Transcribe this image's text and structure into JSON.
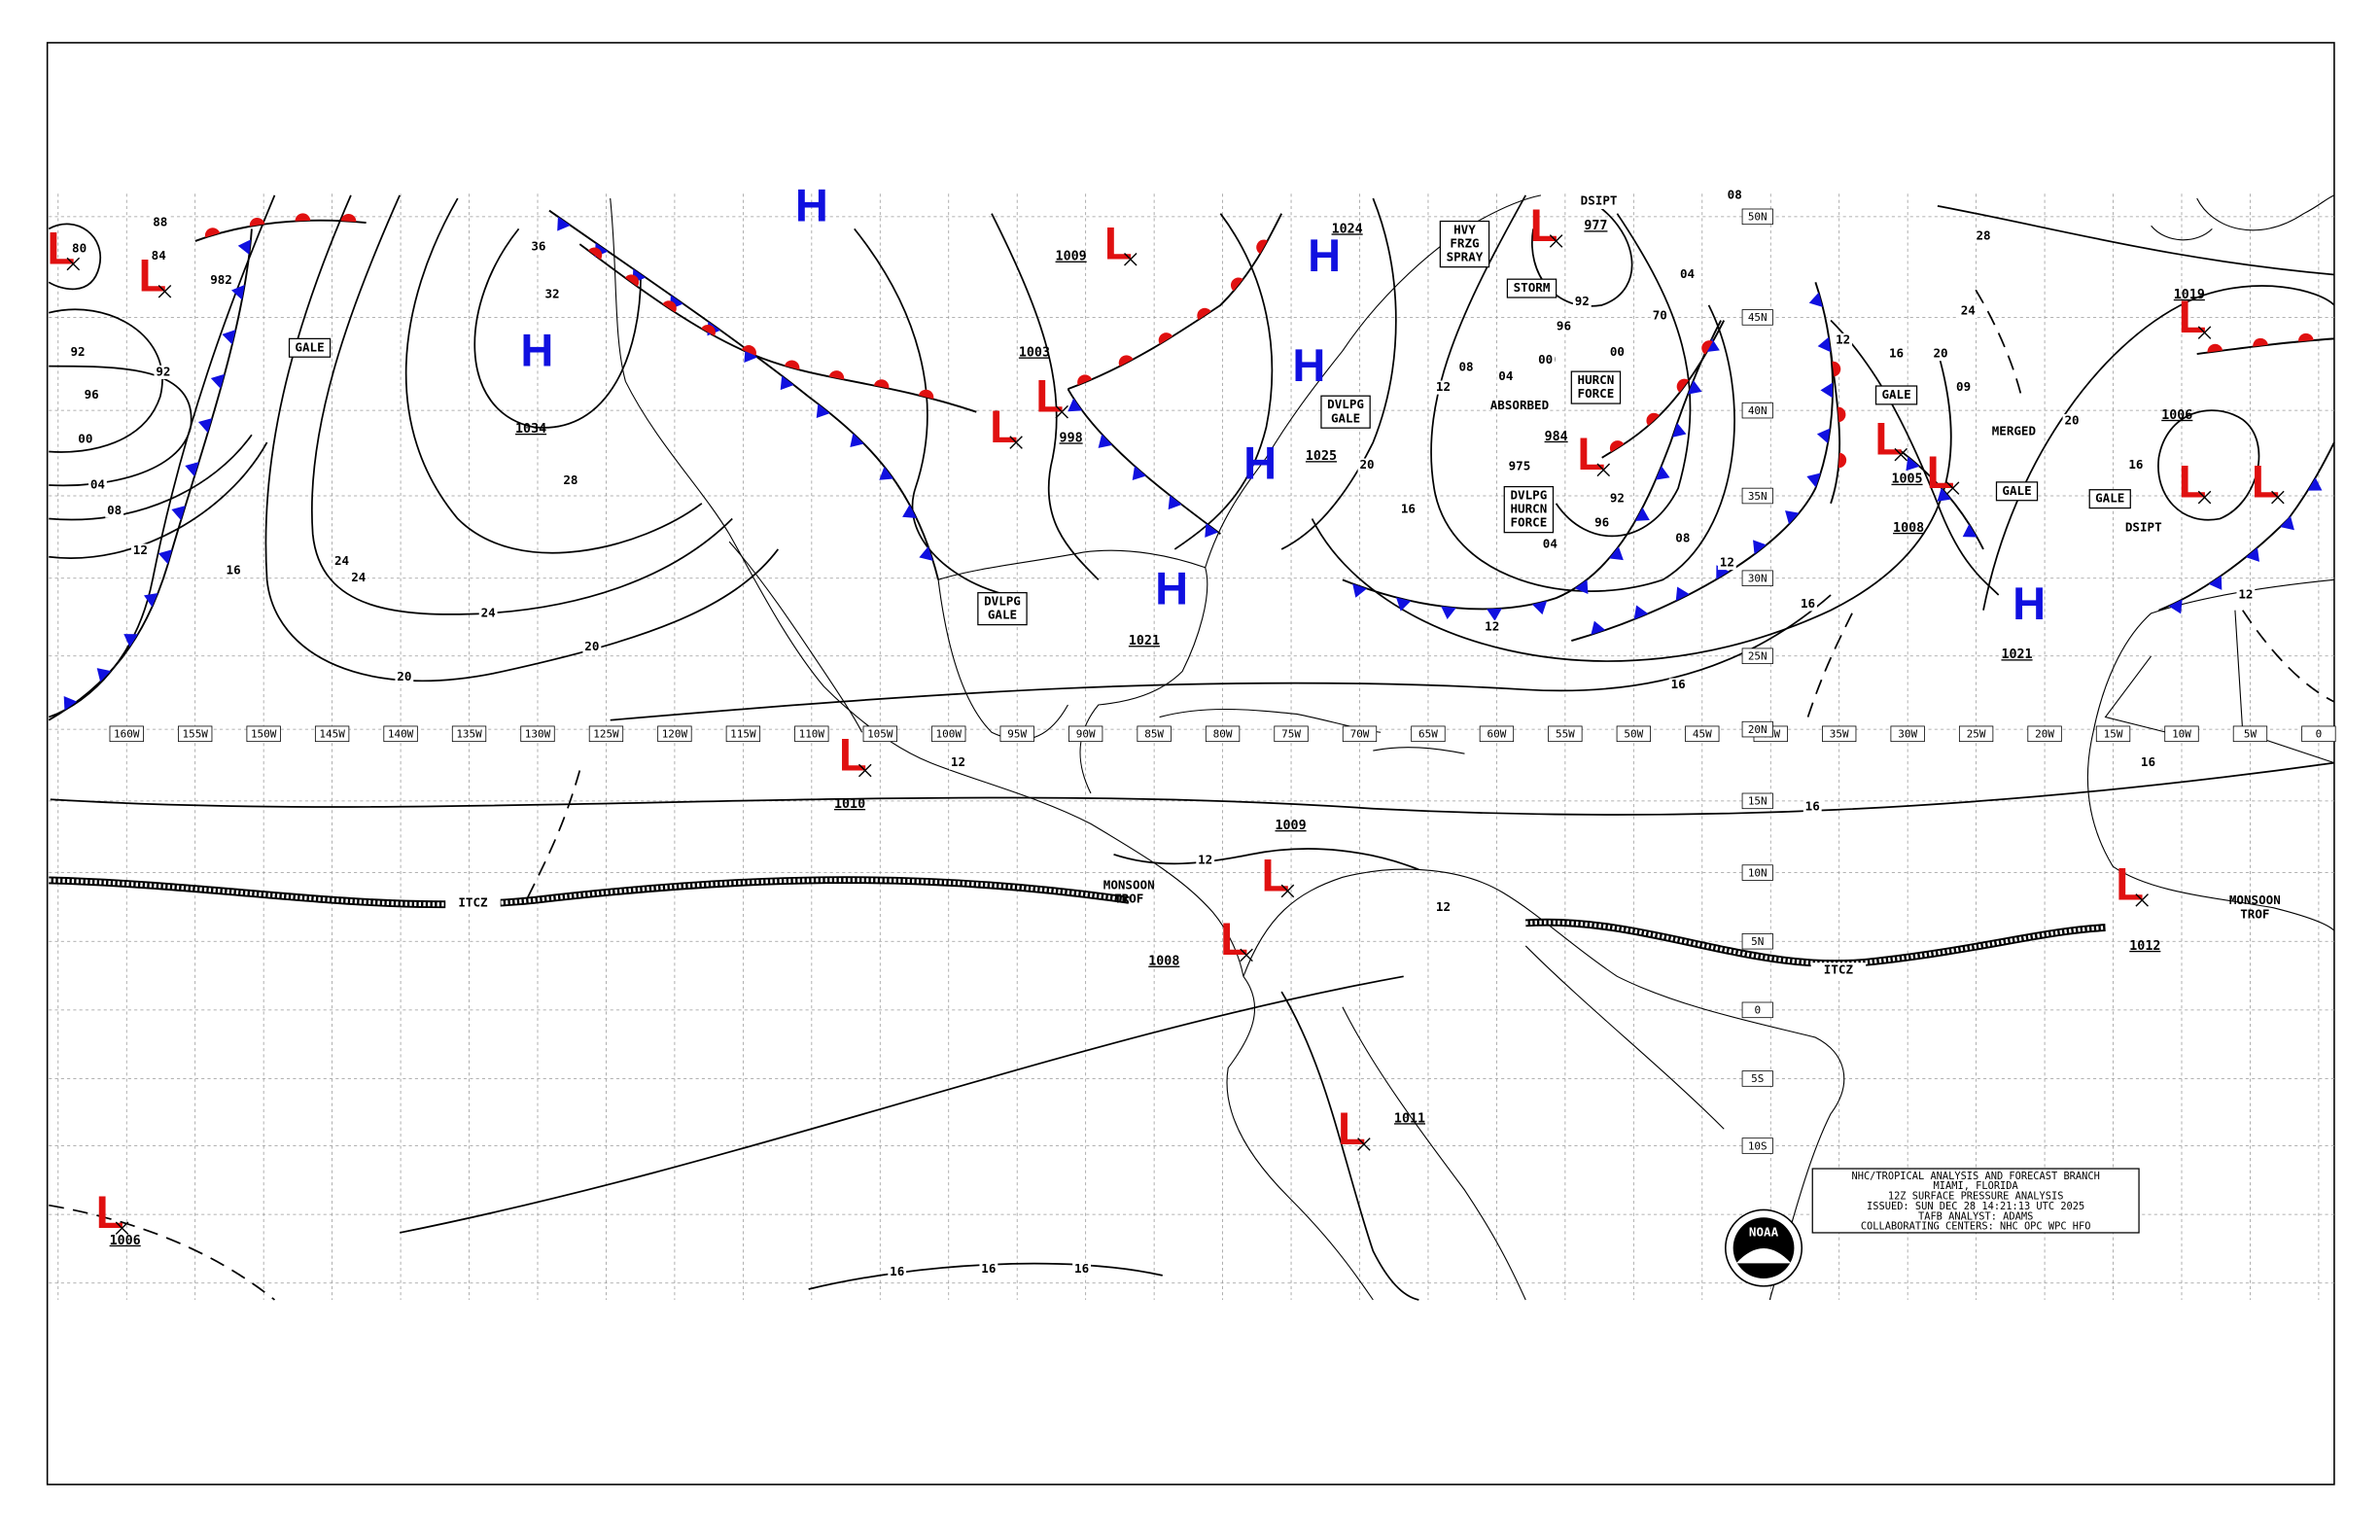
{
  "longitude_labels": [
    "160W",
    "155W",
    "150W",
    "145W",
    "140W",
    "135W",
    "130W",
    "125W",
    "120W",
    "115W",
    "110W",
    "105W",
    "100W",
    "95W",
    "90W",
    "85W",
    "80W",
    "75W",
    "70W",
    "65W",
    "60W",
    "55W",
    "50W",
    "45W",
    "40W",
    "35W",
    "30W",
    "25W",
    "20W",
    "15W",
    "10W",
    "5W",
    "0"
  ],
  "latitude_labels": [
    "50N",
    "45N",
    "40N",
    "35N",
    "30N",
    "25N",
    "20N",
    "15N",
    "10N",
    "5N",
    "0",
    "5S",
    "10S"
  ],
  "pressure_centers": [
    {
      "symbol": "L"
    },
    {
      "symbol": "L"
    },
    {
      "symbol": "H",
      "pressure": "1034"
    },
    {
      "symbol": "H"
    },
    {
      "symbol": "L",
      "pressure": "1009"
    },
    {
      "symbol": "H",
      "pressure": "1024"
    },
    {
      "symbol": "H"
    },
    {
      "symbol": "L",
      "pressure": "1003"
    },
    {
      "symbol": "L",
      "pressure": "998"
    },
    {
      "symbol": "H",
      "pressure": "1025"
    },
    {
      "symbol": "H",
      "pressure": "1021"
    },
    {
      "symbol": "L",
      "pressure": "977"
    },
    {
      "symbol": "L",
      "pressure": "984"
    },
    {
      "symbol": "L",
      "pressure": "1005"
    },
    {
      "symbol": "L",
      "pressure": "1008"
    },
    {
      "symbol": "L",
      "pressure": "1019"
    },
    {
      "symbol": "L",
      "pressure": "1006"
    },
    {
      "symbol": "L"
    },
    {
      "symbol": "H",
      "pressure": "1021"
    },
    {
      "symbol": "L",
      "pressure": "1010"
    },
    {
      "symbol": "L",
      "pressure": "1009"
    },
    {
      "symbol": "L",
      "pressure": "1008"
    },
    {
      "symbol": "L",
      "pressure": "1011"
    },
    {
      "symbol": "L",
      "pressure": "1012"
    },
    {
      "symbol": "L",
      "pressure": "1006"
    }
  ],
  "isobar_labels": [
    "80",
    "84",
    "88",
    "982",
    "92",
    "92",
    "96",
    "00",
    "04",
    "08",
    "12",
    "16",
    "24",
    "24",
    "24",
    "20",
    "20",
    "28",
    "32",
    "36",
    "16",
    "16",
    "12",
    "12",
    "12",
    "16",
    "16",
    "16",
    "20",
    "24",
    "28",
    "16",
    "16",
    "12",
    "08",
    "96",
    "92",
    "12",
    "04",
    "16",
    "20",
    "12",
    "08",
    "04",
    "00",
    "96",
    "92",
    "04",
    "08",
    "70",
    "00",
    "09",
    "16",
    "20",
    "12",
    "16",
    "12",
    "975",
    "00"
  ],
  "annotations": [
    "DSIPT",
    "ABSORBED",
    "MERGED",
    "DSIPT",
    "ITCZ",
    "ITCZ"
  ],
  "boxed_annotations": [
    {
      "lines": [
        "GALE"
      ]
    },
    {
      "lines": [
        "DVLPG",
        "GALE"
      ]
    },
    {
      "lines": [
        "DVLPG",
        "GALE"
      ]
    },
    {
      "lines": [
        "HURCN",
        "FORCE"
      ]
    },
    {
      "lines": [
        "DVLPG",
        "HURCN",
        "FORCE"
      ]
    },
    {
      "lines": [
        "STORM"
      ]
    },
    {
      "lines": [
        "HVY",
        "FRZG",
        "SPRAY"
      ]
    },
    {
      "lines": [
        "GALE"
      ]
    },
    {
      "lines": [
        "GALE"
      ]
    },
    {
      "lines": [
        "GALE"
      ]
    }
  ],
  "trough_labels": [
    {
      "lines": [
        "MONSOON",
        "TROF"
      ]
    },
    {
      "lines": [
        "MONSOON",
        "TROF"
      ]
    }
  ],
  "info_box": {
    "lines": [
      "NHC/TROPICAL ANALYSIS AND FORECAST BRANCH",
      "MIAMI, FLORIDA",
      "12Z SURFACE PRESSURE ANALYSIS",
      "ISSUED: SUN DEC 28 14:21:13 UTC 2025",
      "TAFB ANALYST: ADAMS",
      "COLLABORATING CENTERS: NHC OPC WPC HFO"
    ]
  },
  "logo": {
    "text": "NOAA"
  }
}
